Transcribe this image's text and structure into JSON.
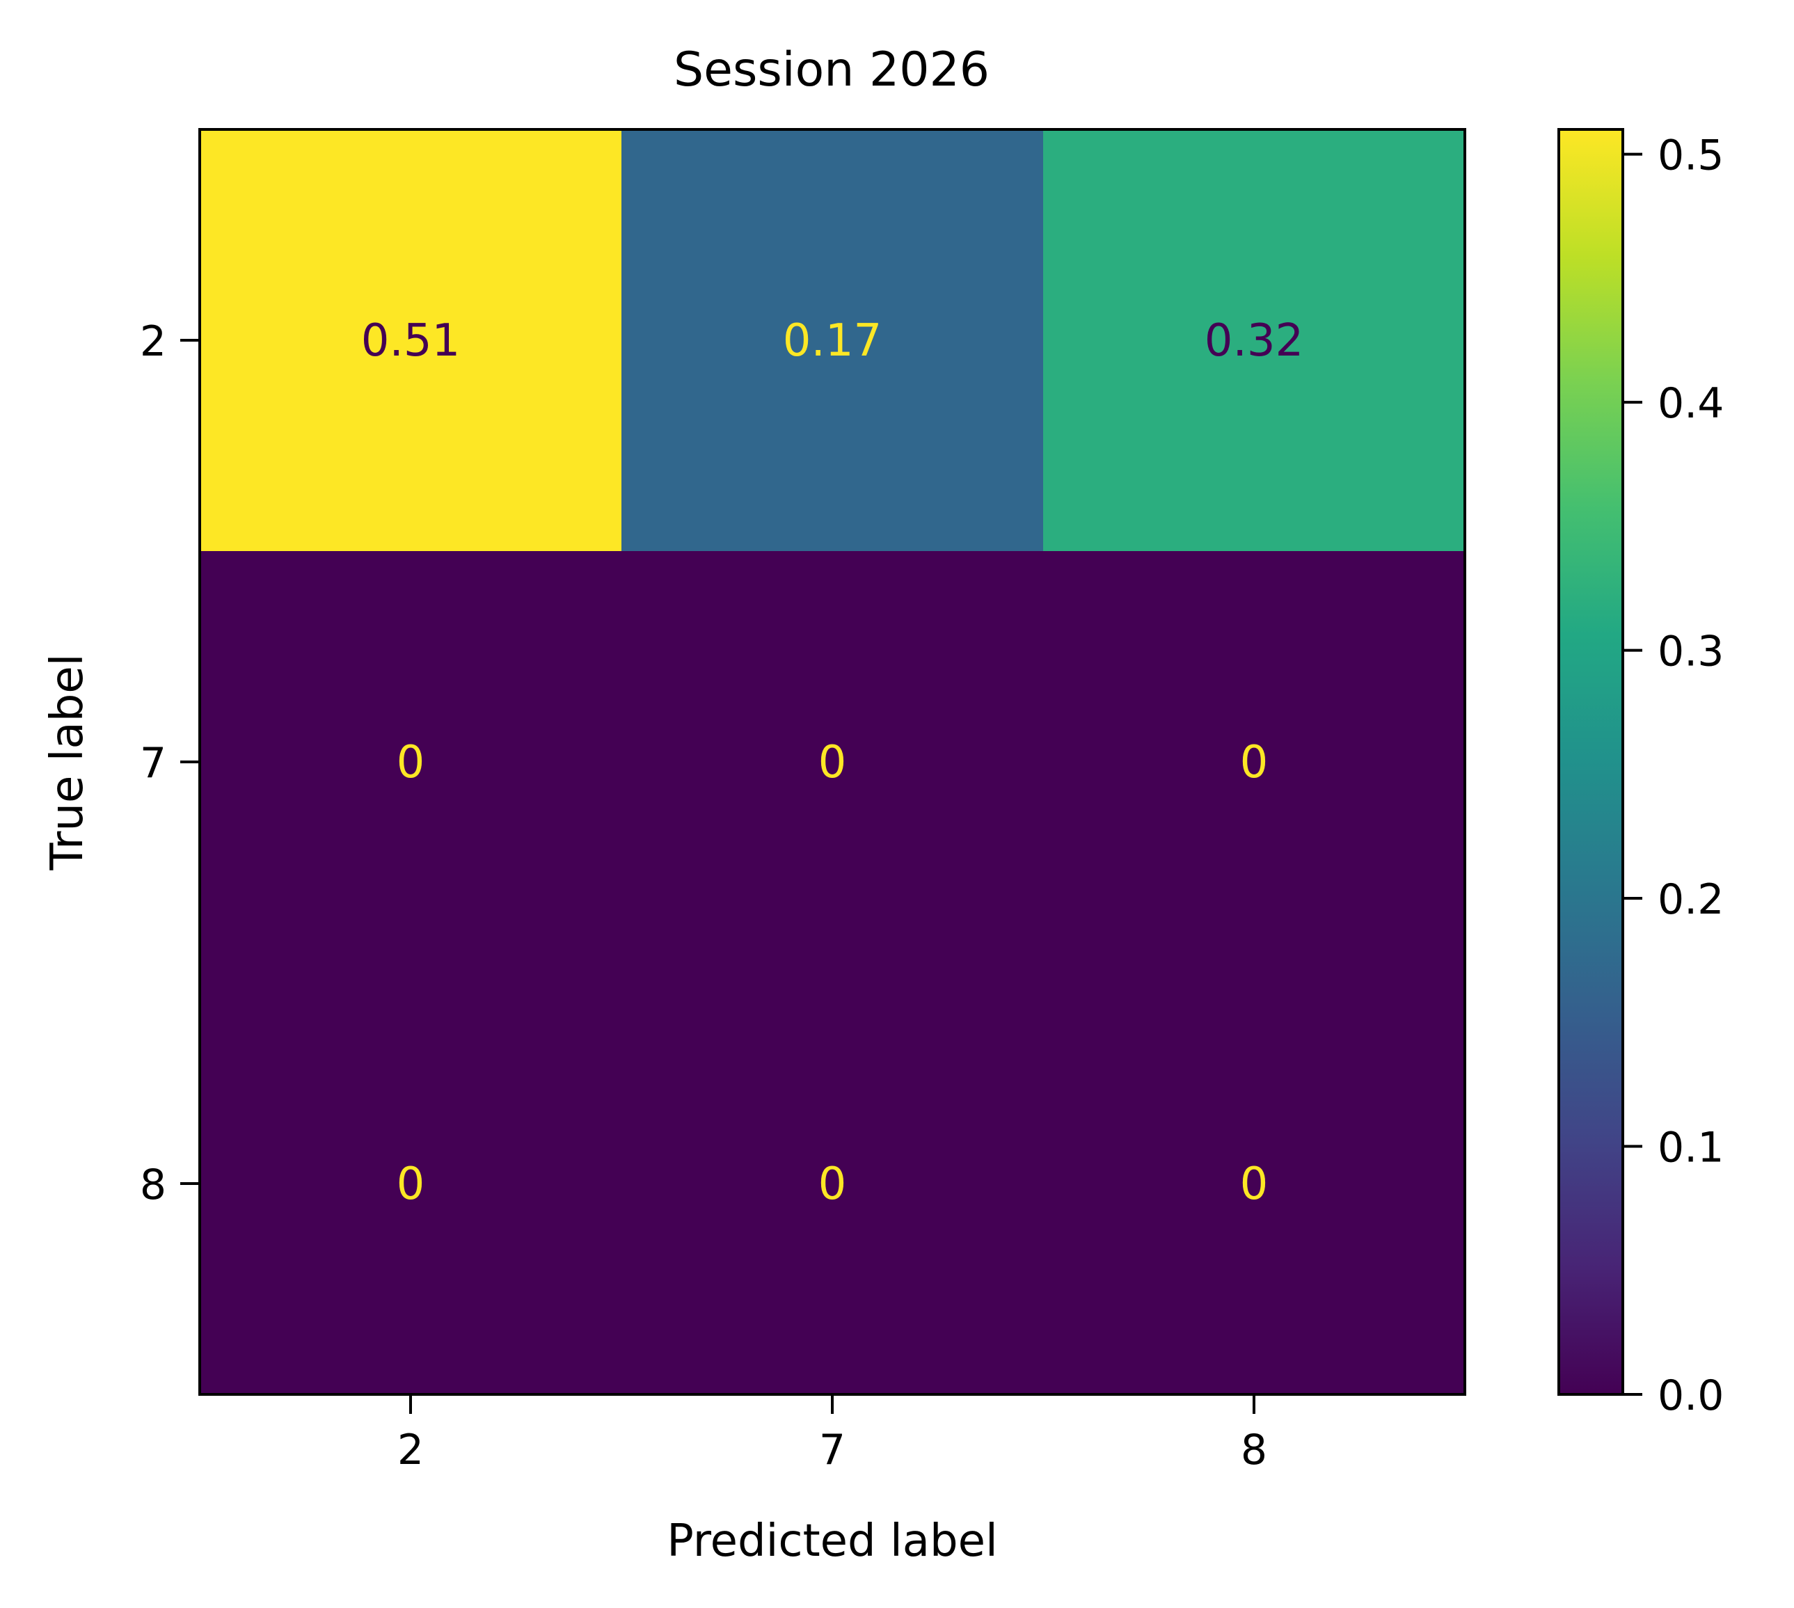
{
  "chart_data": {
    "type": "heatmap",
    "title": "Session 2026",
    "xlabel": "Predicted label",
    "ylabel": "True label",
    "x_categories": [
      "2",
      "7",
      "8"
    ],
    "y_categories": [
      "2",
      "7",
      "8"
    ],
    "values": [
      [
        0.51,
        0.17,
        0.32
      ],
      [
        0,
        0,
        0
      ],
      [
        0,
        0,
        0
      ]
    ],
    "cell_labels": [
      [
        "0.51",
        "0.17",
        "0.32"
      ],
      [
        "0",
        "0",
        "0"
      ],
      [
        "0",
        "0",
        "0"
      ]
    ],
    "colormap": "viridis",
    "colorbar": {
      "range": [
        0,
        0.51
      ],
      "ticks": [
        "0.0",
        "0.1",
        "0.2",
        "0.3",
        "0.4",
        "0.5"
      ],
      "tick_values": [
        0.0,
        0.1,
        0.2,
        0.3,
        0.4,
        0.5
      ]
    },
    "colors": {
      "light_text": "#fde725",
      "dark_text": "#440154"
    }
  }
}
